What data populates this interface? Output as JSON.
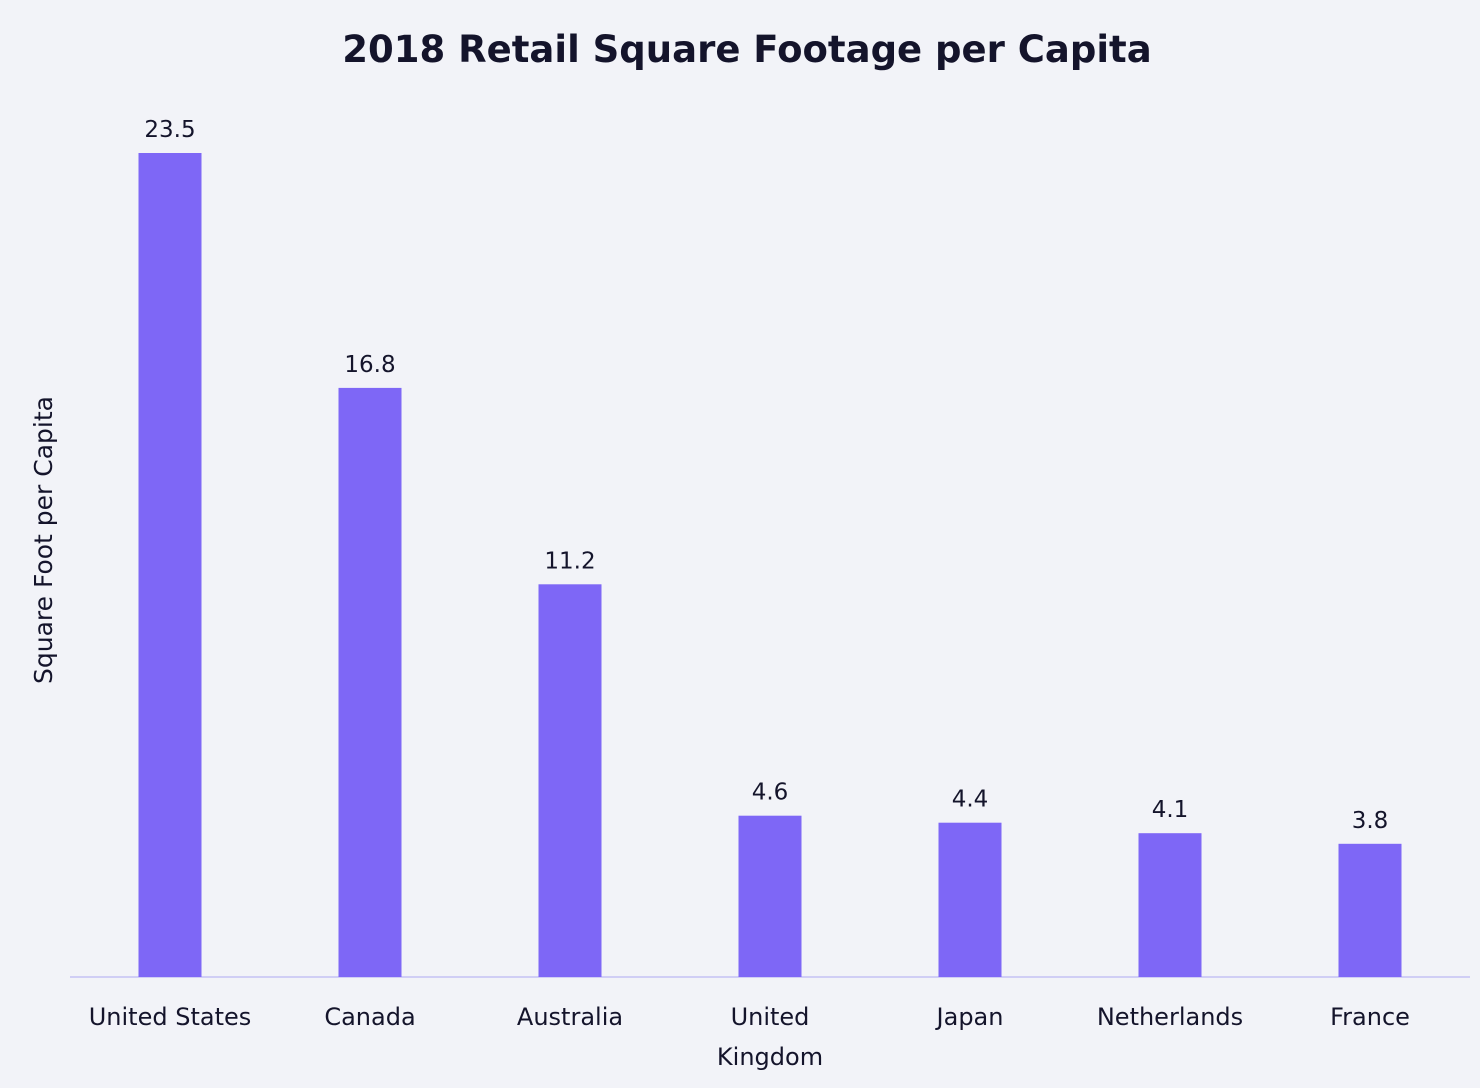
{
  "chart_data": {
    "type": "bar",
    "title": "2018 Retail Square Footage per Capita",
    "xlabel": "",
    "ylabel": "Square Foot per Capita",
    "categories": [
      "United States",
      "Canada",
      "Australia",
      "United Kingdom",
      "Japan",
      "Netherlands",
      "France"
    ],
    "category_lines": [
      [
        "United States"
      ],
      [
        "Canada"
      ],
      [
        "Australia"
      ],
      [
        "United",
        "Kingdom"
      ],
      [
        "Japan"
      ],
      [
        "Netherlands"
      ],
      [
        "France"
      ]
    ],
    "values": [
      23.5,
      16.8,
      11.2,
      4.6,
      4.4,
      4.1,
      3.8
    ],
    "value_labels": [
      "23.5",
      "16.8",
      "11.2",
      "4.6",
      "4.4",
      "4.1",
      "3.8"
    ],
    "ylim": [
      0,
      23.5
    ],
    "grid": false,
    "legend": "none",
    "colors": {
      "bar": "#7e67f6",
      "axis": "#c4c1f4",
      "text": "#14142b",
      "background": "#f2f3f8"
    }
  }
}
